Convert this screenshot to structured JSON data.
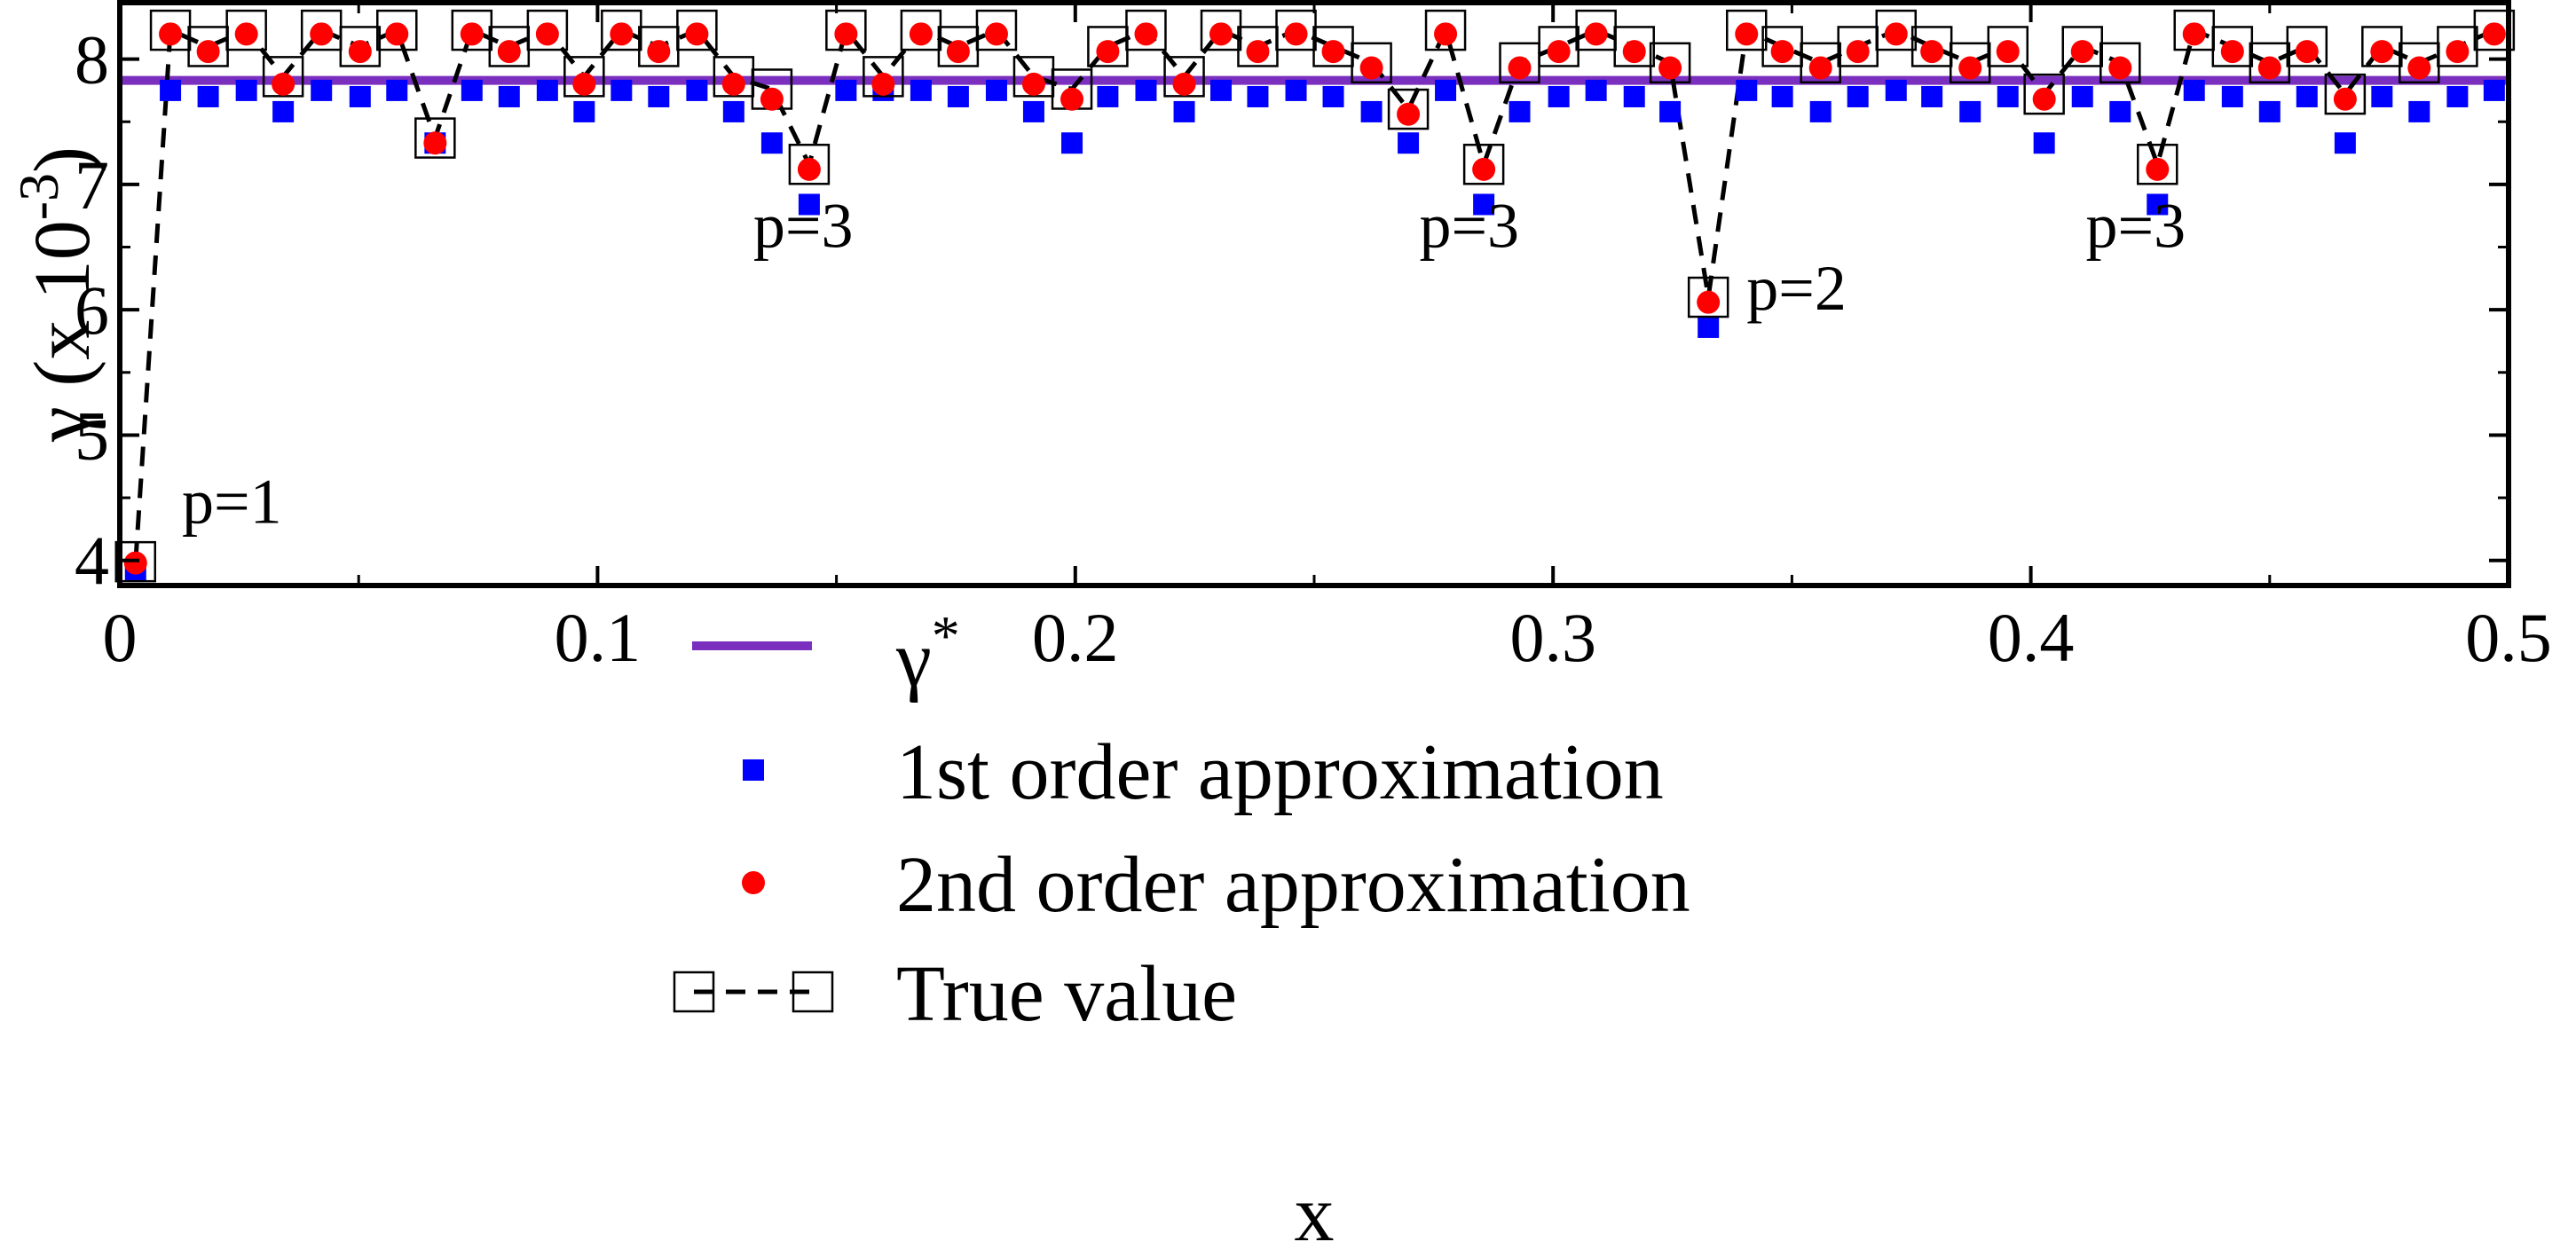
{
  "chart_data": {
    "type": "scatter",
    "xlabel": "x",
    "ylabel": "γ (x 10",
    "ylabel_exp": "-3",
    "ylabel_close": ")",
    "xlim": [
      0,
      0.5
    ],
    "ylim": [
      3.8,
      8.45
    ],
    "xticks": [
      0,
      0.1,
      0.2,
      0.3,
      0.4,
      0.5
    ],
    "xtick_labels": [
      "0",
      "0.1",
      "0.2",
      "0.3",
      "0.4",
      "0.5"
    ],
    "yticks": [
      4,
      5,
      6,
      7,
      8
    ],
    "ytick_labels": [
      "4",
      "5",
      "6",
      "7",
      "8"
    ],
    "grid": false,
    "legend_position": "bottom-center",
    "gamma_star": 7.83,
    "series": [
      {
        "name": "γ",
        "name_sup": "*",
        "kind": "hline",
        "color": "#7b2fbf"
      },
      {
        "name": "1st order approximation",
        "kind": "square",
        "color": "#0000ff",
        "x": [
          0.0033,
          0.0106,
          0.0185,
          0.0265,
          0.0342,
          0.0422,
          0.0503,
          0.058,
          0.066,
          0.0737,
          0.0815,
          0.0895,
          0.0972,
          0.105,
          0.1128,
          0.1208,
          0.1285,
          0.1365,
          0.1443,
          0.152,
          0.1598,
          0.1677,
          0.1755,
          0.1835,
          0.1913,
          0.1993,
          0.2068,
          0.2148,
          0.2228,
          0.2305,
          0.2382,
          0.2462,
          0.254,
          0.262,
          0.2697,
          0.2775,
          0.2855,
          0.293,
          0.3012,
          0.309,
          0.317,
          0.3245,
          0.3325,
          0.3405,
          0.348,
          0.356,
          0.3638,
          0.3718,
          0.3793,
          0.3873,
          0.3952,
          0.4028,
          0.4108,
          0.4187,
          0.4265,
          0.4342,
          0.4422,
          0.45,
          0.4578,
          0.4658,
          0.4735,
          0.4813,
          0.4893,
          0.497
        ],
        "y": [
          3.92,
          7.75,
          7.7,
          7.75,
          7.58,
          7.75,
          7.7,
          7.75,
          7.33,
          7.75,
          7.7,
          7.75,
          7.58,
          7.75,
          7.7,
          7.75,
          7.58,
          7.33,
          6.84,
          7.75,
          7.75,
          7.75,
          7.7,
          7.75,
          7.58,
          7.33,
          7.7,
          7.75,
          7.58,
          7.75,
          7.7,
          7.75,
          7.7,
          7.58,
          7.33,
          7.75,
          6.84,
          7.58,
          7.7,
          7.75,
          7.7,
          7.58,
          5.86,
          7.75,
          7.7,
          7.58,
          7.7,
          7.75,
          7.7,
          7.58,
          7.7,
          7.33,
          7.7,
          7.58,
          6.84,
          7.75,
          7.7,
          7.58,
          7.7,
          7.33,
          7.7,
          7.58,
          7.7,
          7.75
        ]
      },
      {
        "name": "2nd order approximation",
        "kind": "circle",
        "color": "#ff0000",
        "x": [
          0.0033,
          0.0106,
          0.0185,
          0.0265,
          0.0342,
          0.0422,
          0.0503,
          0.058,
          0.066,
          0.0737,
          0.0815,
          0.0895,
          0.0972,
          0.105,
          0.1128,
          0.1208,
          0.1285,
          0.1365,
          0.1443,
          0.152,
          0.1598,
          0.1677,
          0.1755,
          0.1835,
          0.1913,
          0.1993,
          0.2068,
          0.2148,
          0.2228,
          0.2305,
          0.2382,
          0.2462,
          0.254,
          0.262,
          0.2697,
          0.2775,
          0.2855,
          0.293,
          0.3012,
          0.309,
          0.317,
          0.3245,
          0.3325,
          0.3405,
          0.348,
          0.356,
          0.3638,
          0.3718,
          0.3793,
          0.3873,
          0.3952,
          0.4028,
          0.4108,
          0.4187,
          0.4265,
          0.4342,
          0.4422,
          0.45,
          0.4578,
          0.4658,
          0.4735,
          0.4813,
          0.4893,
          0.497
        ],
        "y": [
          3.98,
          8.2,
          8.06,
          8.2,
          7.8,
          8.2,
          8.06,
          8.2,
          7.33,
          8.2,
          8.06,
          8.2,
          7.8,
          8.2,
          8.06,
          8.2,
          7.8,
          7.68,
          7.12,
          8.2,
          7.8,
          8.2,
          8.06,
          8.2,
          7.8,
          7.68,
          8.06,
          8.2,
          7.8,
          8.2,
          8.06,
          8.2,
          8.06,
          7.93,
          7.56,
          8.2,
          7.12,
          7.93,
          8.06,
          8.2,
          8.06,
          7.93,
          6.06,
          8.2,
          8.06,
          7.93,
          8.06,
          8.2,
          8.06,
          7.93,
          8.06,
          7.68,
          8.06,
          7.93,
          7.12,
          8.2,
          8.06,
          7.93,
          8.06,
          7.68,
          8.06,
          7.93,
          8.06,
          8.2
        ]
      },
      {
        "name": "True value",
        "kind": "open-square-dashed",
        "color": "#000000",
        "x": [
          0.0033,
          0.0106,
          0.0185,
          0.0265,
          0.0342,
          0.0422,
          0.0503,
          0.058,
          0.066,
          0.0737,
          0.0815,
          0.0895,
          0.0972,
          0.105,
          0.1128,
          0.1208,
          0.1285,
          0.1365,
          0.1443,
          0.152,
          0.1598,
          0.1677,
          0.1755,
          0.1835,
          0.1913,
          0.1993,
          0.2068,
          0.2148,
          0.2228,
          0.2305,
          0.2382,
          0.2462,
          0.254,
          0.262,
          0.2697,
          0.2775,
          0.2855,
          0.293,
          0.3012,
          0.309,
          0.317,
          0.3245,
          0.3325,
          0.3405,
          0.348,
          0.356,
          0.3638,
          0.3718,
          0.3793,
          0.3873,
          0.3952,
          0.4028,
          0.4108,
          0.4187,
          0.4265,
          0.4342,
          0.4422,
          0.45,
          0.4578,
          0.4658,
          0.4735,
          0.4813,
          0.4893,
          0.497
        ],
        "y": [
          3.99,
          8.23,
          8.1,
          8.23,
          7.86,
          8.23,
          8.1,
          8.23,
          7.37,
          8.23,
          8.1,
          8.23,
          7.86,
          8.23,
          8.1,
          8.23,
          7.86,
          7.76,
          7.16,
          8.23,
          7.86,
          8.23,
          8.1,
          8.23,
          7.86,
          7.76,
          8.1,
          8.23,
          7.86,
          8.23,
          8.1,
          8.23,
          8.1,
          7.97,
          7.6,
          8.23,
          7.16,
          7.97,
          8.1,
          8.23,
          8.1,
          7.97,
          6.1,
          8.23,
          8.1,
          7.97,
          8.1,
          8.23,
          8.1,
          7.97,
          8.1,
          7.72,
          8.1,
          7.97,
          7.16,
          8.23,
          8.1,
          7.97,
          8.1,
          7.72,
          8.1,
          7.97,
          8.1,
          8.23
        ]
      }
    ],
    "annotations": [
      {
        "text": "p=1",
        "x": 0.013,
        "y": 4.3
      },
      {
        "text": "p=3",
        "x": 0.1326,
        "y": 6.5
      },
      {
        "text": "p=3",
        "x": 0.272,
        "y": 6.5
      },
      {
        "text": "p=2",
        "x": 0.3405,
        "y": 6.0
      },
      {
        "text": "p=3",
        "x": 0.4115,
        "y": 6.5
      }
    ]
  }
}
